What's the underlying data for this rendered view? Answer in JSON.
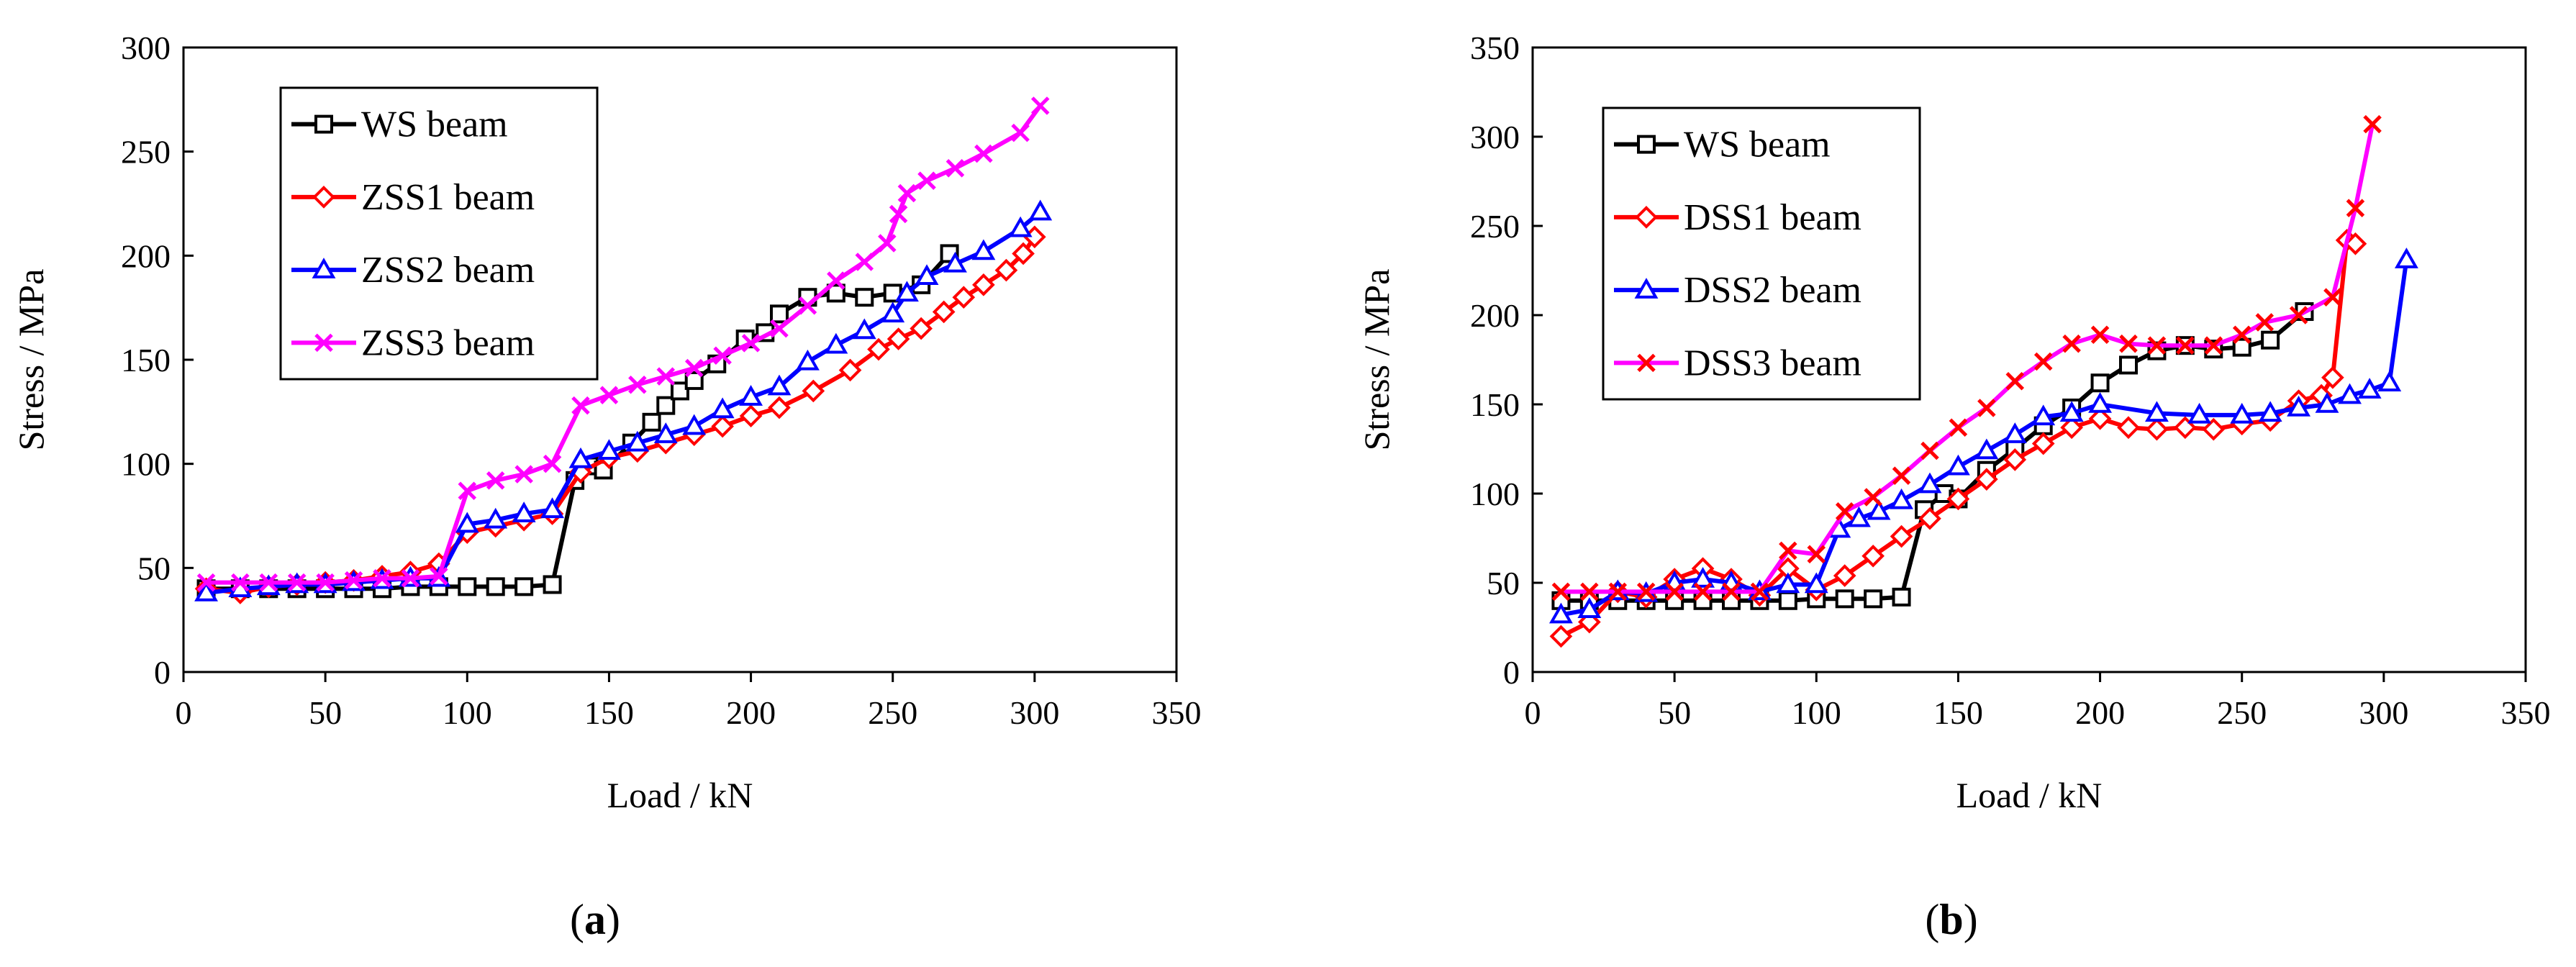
{
  "chart_data": [
    {
      "type": "line",
      "panel_label_parts": [
        "(",
        "a",
        ")"
      ],
      "xlabel": "Load / kN",
      "ylabel": "Stress / MPa",
      "xlim": [
        0,
        350
      ],
      "ylim": [
        0,
        300
      ],
      "xticks": [
        0,
        50,
        100,
        150,
        200,
        250,
        300,
        350
      ],
      "yticks": [
        0,
        50,
        100,
        150,
        200,
        250,
        300
      ],
      "grid": false,
      "legend": "top-left",
      "series": [
        {
          "name": "WS beam",
          "color": "#000000",
          "marker": "square",
          "x": [
            8,
            20,
            30,
            40,
            50,
            60,
            70,
            80,
            90,
            100,
            110,
            120,
            130,
            138,
            143,
            148,
            158,
            165,
            170,
            175,
            180,
            188,
            198,
            205,
            210,
            220,
            230,
            240,
            250,
            260,
            270
          ],
          "y": [
            40,
            40,
            40,
            40,
            40,
            40,
            40,
            41,
            41,
            41,
            41,
            41,
            42,
            92,
            99,
            97,
            110,
            120,
            128,
            135,
            140,
            148,
            160,
            163,
            172,
            180,
            182,
            180,
            182,
            186,
            201
          ]
        },
        {
          "name": "ZSS1 beam",
          "color": "#ff0000",
          "marker": "diamond",
          "x": [
            8,
            20,
            30,
            40,
            50,
            60,
            70,
            80,
            90,
            100,
            110,
            120,
            130,
            140,
            150,
            160,
            170,
            180,
            190,
            200,
            210,
            222,
            235,
            245,
            252,
            260,
            268,
            275,
            282,
            290,
            296,
            300
          ],
          "y": [
            40,
            38,
            41,
            42,
            43,
            44,
            46,
            48,
            52,
            67,
            70,
            73,
            76,
            96,
            103,
            106,
            110,
            114,
            118,
            123,
            127,
            135,
            145,
            155,
            160,
            165,
            173,
            180,
            186,
            193,
            201,
            209
          ]
        },
        {
          "name": "ZSS2 beam",
          "color": "#0000ff",
          "marker": "triangle",
          "x": [
            8,
            20,
            30,
            40,
            50,
            60,
            70,
            80,
            90,
            100,
            110,
            120,
            130,
            140,
            150,
            160,
            170,
            180,
            190,
            200,
            210,
            220,
            230,
            240,
            250,
            255,
            262,
            272,
            282,
            295,
            302
          ],
          "y": [
            38,
            40,
            41,
            42,
            42,
            43,
            44,
            45,
            45,
            71,
            73,
            76,
            78,
            102,
            106,
            110,
            114,
            118,
            126,
            132,
            137,
            149,
            157,
            164,
            172,
            182,
            190,
            196,
            202,
            213,
            221
          ]
        },
        {
          "name": "ZSS3 beam",
          "color": "#ff00ff",
          "marker": "x",
          "x": [
            8,
            20,
            30,
            40,
            50,
            60,
            70,
            80,
            90,
            100,
            110,
            120,
            130,
            140,
            150,
            160,
            170,
            180,
            190,
            200,
            210,
            220,
            230,
            240,
            248,
            252,
            255,
            262,
            272,
            282,
            295,
            302
          ],
          "y": [
            43,
            43,
            43,
            43,
            43,
            44,
            45,
            45,
            46,
            87,
            92,
            95,
            100,
            128,
            133,
            138,
            142,
            146,
            152,
            158,
            165,
            176,
            188,
            197,
            206,
            220,
            230,
            236,
            242,
            249,
            259,
            272
          ]
        }
      ]
    },
    {
      "type": "line",
      "panel_label_parts": [
        "(",
        "b",
        ")"
      ],
      "xlabel": "Load / kN",
      "ylabel": "Stress / MPa",
      "xlim": [
        0,
        350
      ],
      "ylim": [
        0,
        350
      ],
      "xticks": [
        0,
        50,
        100,
        150,
        200,
        250,
        300,
        350
      ],
      "yticks": [
        0,
        50,
        100,
        150,
        200,
        250,
        300,
        350
      ],
      "grid": false,
      "legend": "top-left",
      "series": [
        {
          "name": "WS beam",
          "color": "#000000",
          "marker": "square",
          "x": [
            10,
            20,
            30,
            40,
            50,
            60,
            70,
            80,
            90,
            100,
            110,
            120,
            130,
            138,
            145,
            150,
            160,
            170,
            180,
            190,
            200,
            210,
            220,
            230,
            240,
            250,
            260,
            272
          ],
          "y": [
            40,
            40,
            40,
            40,
            40,
            40,
            40,
            40,
            40,
            41,
            41,
            41,
            42,
            91,
            100,
            97,
            113,
            125,
            138,
            148,
            162,
            172,
            180,
            183,
            181,
            182,
            186,
            202
          ]
        },
        {
          "name": "DSS1 beam",
          "color": "#ff0000",
          "marker": "diamond",
          "x": [
            10,
            20,
            30,
            40,
            50,
            60,
            70,
            80,
            90,
            100,
            110,
            120,
            130,
            140,
            150,
            160,
            170,
            180,
            190,
            200,
            210,
            220,
            230,
            240,
            250,
            260,
            270,
            278,
            282,
            287,
            290
          ],
          "y": [
            20,
            28,
            45,
            42,
            52,
            58,
            52,
            43,
            58,
            46,
            54,
            65,
            76,
            86,
            97,
            108,
            119,
            128,
            137,
            142,
            137,
            136,
            137,
            136,
            139,
            141,
            152,
            155,
            165,
            242,
            240
          ]
        },
        {
          "name": "DSS2 beam",
          "color": "#0000ff",
          "marker": "triangle",
          "x": [
            10,
            20,
            30,
            40,
            50,
            60,
            70,
            80,
            90,
            100,
            108,
            115,
            122,
            130,
            140,
            150,
            160,
            170,
            180,
            190,
            200,
            220,
            235,
            250,
            260,
            270,
            280,
            288,
            295,
            302,
            308
          ],
          "y": [
            32,
            35,
            45,
            44,
            50,
            52,
            50,
            45,
            49,
            49,
            80,
            86,
            90,
            96,
            105,
            115,
            124,
            133,
            143,
            145,
            150,
            145,
            144,
            144,
            145,
            148,
            150,
            155,
            158,
            162,
            231
          ]
        },
        {
          "name": "DSS3 beam",
          "color": "#ff00ff",
          "line_color": "#ff00ff",
          "marker_color": "#ff0000",
          "marker": "x",
          "x": [
            10,
            20,
            30,
            40,
            50,
            60,
            70,
            80,
            90,
            100,
            110,
            120,
            130,
            140,
            150,
            160,
            170,
            180,
            190,
            200,
            210,
            220,
            230,
            240,
            250,
            258,
            270,
            282,
            290,
            296
          ],
          "y": [
            45,
            45,
            45,
            45,
            45,
            45,
            45,
            45,
            68,
            66,
            90,
            98,
            110,
            124,
            137,
            148,
            163,
            174,
            184,
            189,
            184,
            183,
            183,
            183,
            189,
            196,
            200,
            210,
            260,
            307
          ]
        }
      ]
    }
  ]
}
